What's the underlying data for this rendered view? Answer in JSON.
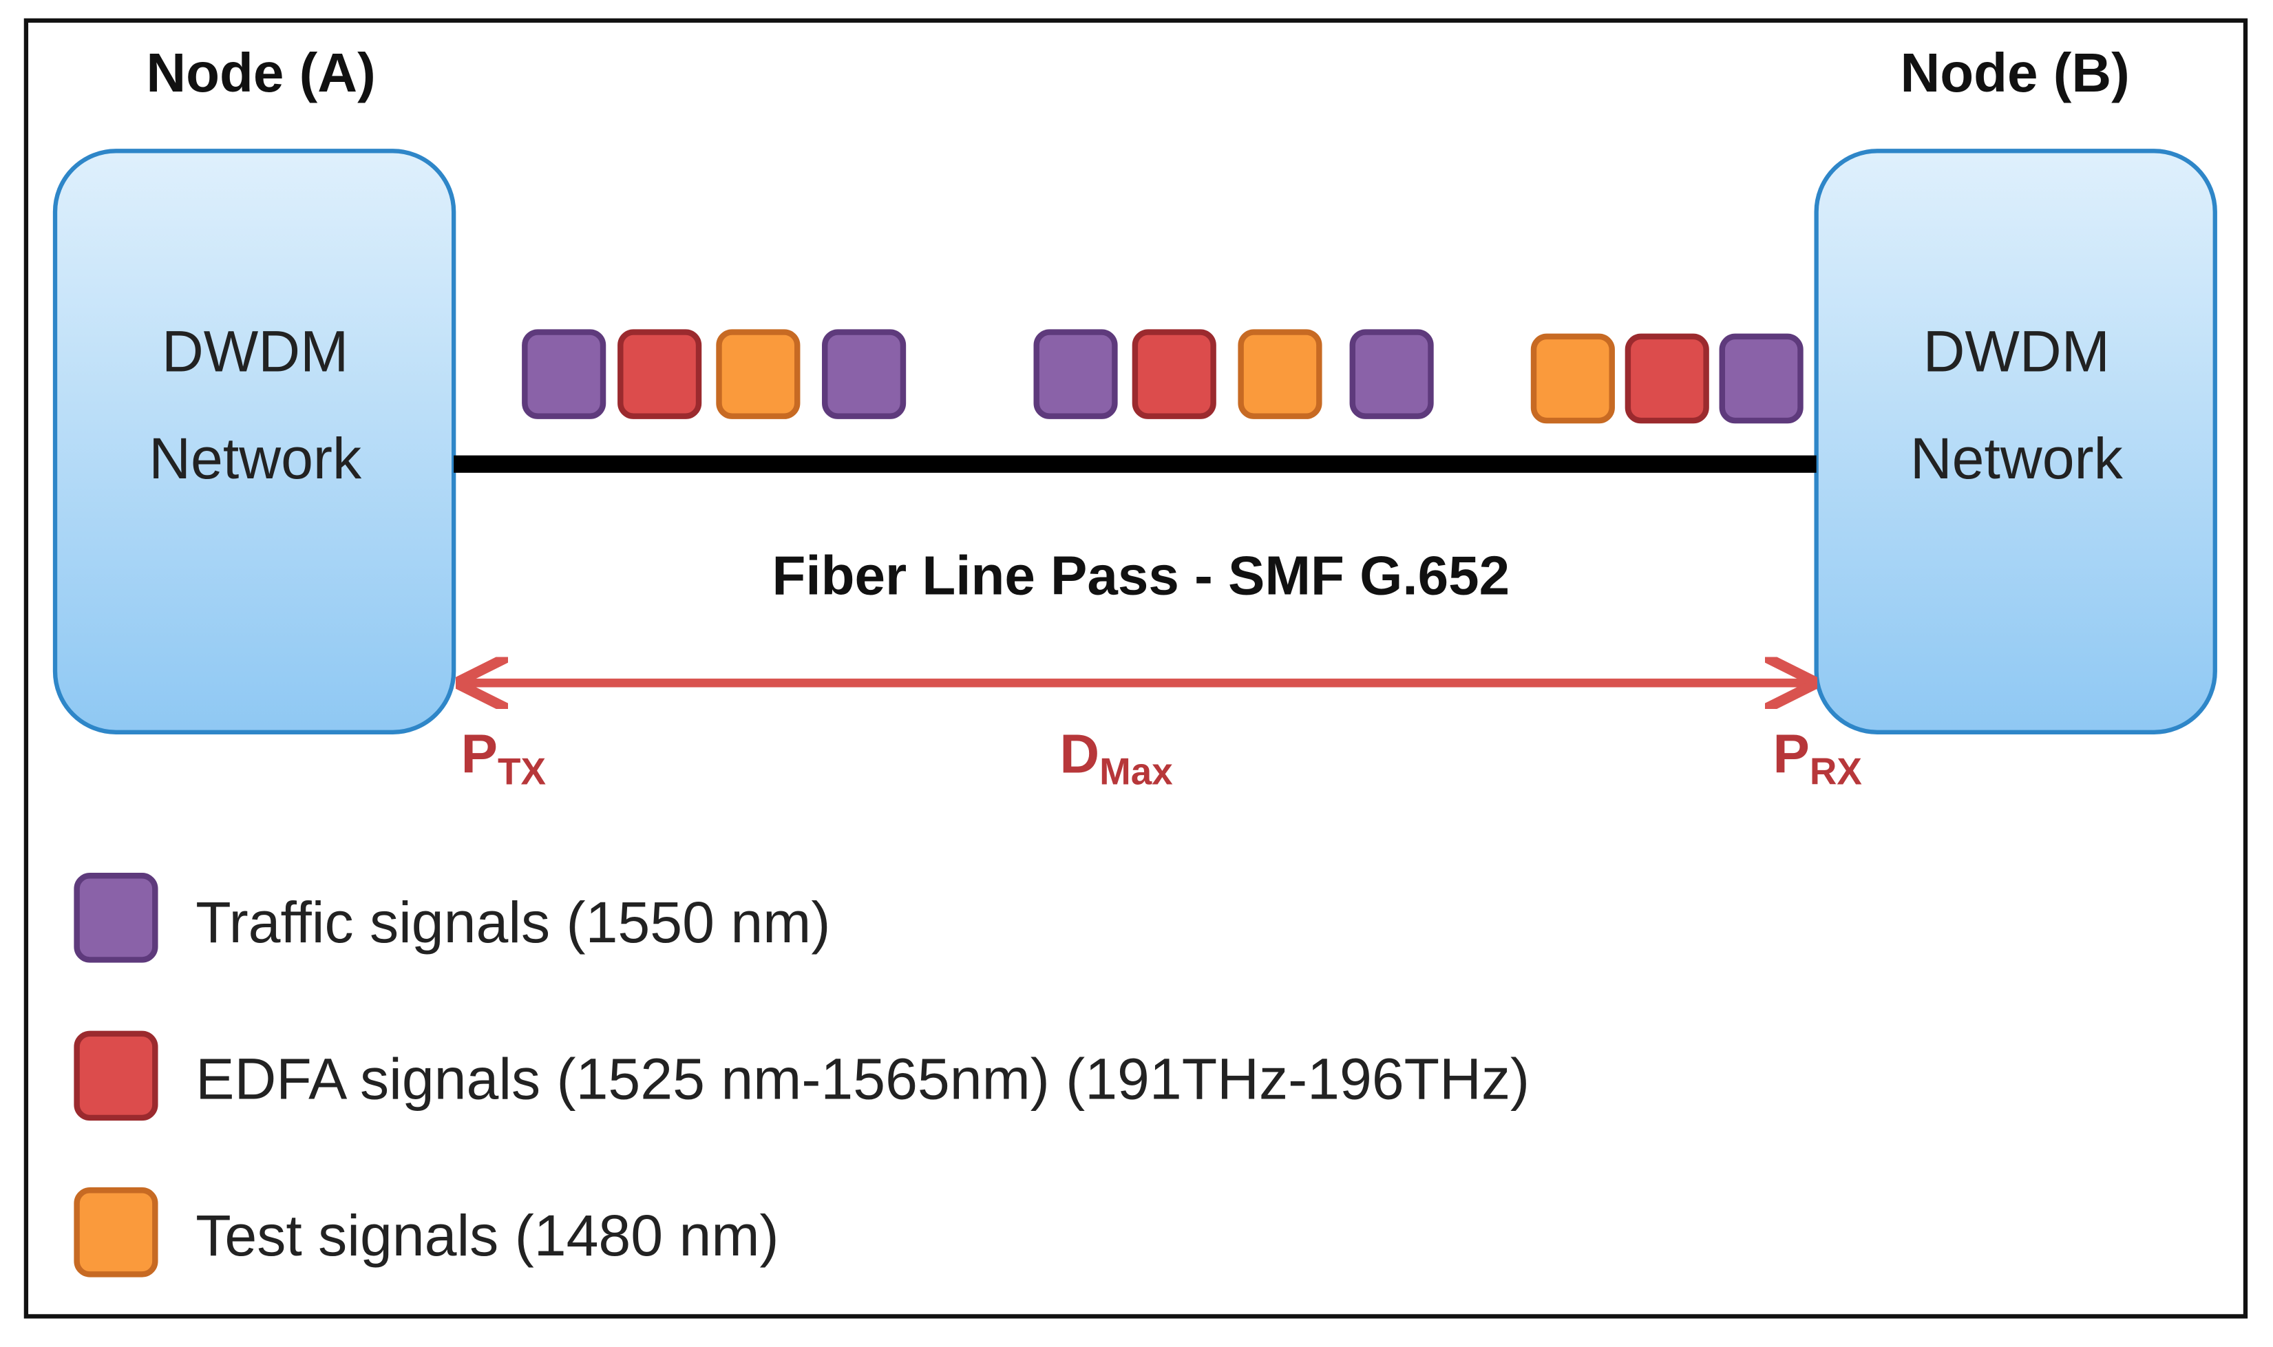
{
  "nodes": [
    {
      "title": "Node (A)",
      "label": [
        "DWDM",
        "Network"
      ]
    },
    {
      "title": "Node (B)",
      "label": [
        "DWDM",
        "Network"
      ]
    }
  ],
  "link": {
    "label": "Fiber Line Pass - SMF G.652"
  },
  "markers": [
    {
      "main": "P",
      "sub": "TX"
    },
    {
      "main": "D",
      "sub": "Max"
    },
    {
      "main": "P",
      "sub": "RX"
    }
  ],
  "legend": [
    {
      "label": "Traffic signals (1550 nm)"
    },
    {
      "label": "EDFA signals (1525 nm-1565nm) (191THz-196THz)"
    },
    {
      "label": "Test signals (1480 nm)"
    }
  ]
}
